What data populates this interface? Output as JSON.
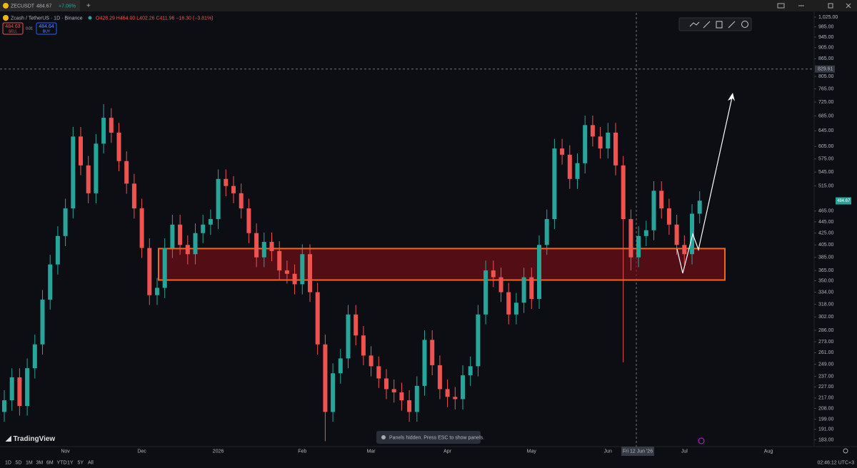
{
  "tab": {
    "symbol": "ZECUSDT",
    "price": "484.67",
    "change": "+7.06%"
  },
  "header": {
    "title": "Zcash / TetherUS · 1D · Binance",
    "ohlc": "O428.29 H464.00 L402.26 C411.96 −16.30 (−3.81%)",
    "sell_price": "484.63",
    "sell": "SELL",
    "spread": "0.01",
    "buy_price": "484.64",
    "buy": "BUY"
  },
  "chart_data": {
    "type": "candlestick",
    "log_scale": true,
    "up_color": "#26a69a",
    "down_color": "#ef5350",
    "categories": [
      null,
      null,
      null,
      null,
      null,
      null,
      null,
      null,
      "Nov",
      null,
      null,
      null,
      null,
      null,
      null,
      null,
      null,
      null,
      "Dec",
      null,
      null,
      null,
      null,
      null,
      null,
      null,
      null,
      null,
      "2026",
      null,
      null,
      null,
      null,
      null,
      null,
      null,
      null,
      null,
      null,
      "Feb",
      null,
      null,
      null,
      null,
      null,
      null,
      null,
      null,
      "Mar",
      null,
      null,
      null,
      null,
      null,
      null,
      null,
      null,
      null,
      "Apr",
      null,
      null,
      null,
      null,
      null,
      null,
      null,
      null,
      null,
      null,
      "May",
      null,
      null,
      null,
      null,
      null,
      null,
      null,
      null,
      null,
      "Jun",
      null,
      null,
      null,
      null,
      null,
      null,
      null,
      null,
      null,
      "Jul",
      null,
      null,
      null,
      null,
      null,
      null,
      null,
      null,
      null,
      null,
      "Aug"
    ],
    "open": [
      205,
      215,
      236,
      210,
      245,
      270,
      324,
      374,
      420,
      470,
      630,
      560,
      500,
      612,
      680,
      640,
      570,
      520,
      470,
      400,
      330,
      340,
      400,
      440,
      405,
      390,
      425,
      440,
      450,
      530,
      515,
      500,
      470,
      425,
      385,
      410,
      395,
      365,
      360,
      345,
      390,
      334,
      270,
      205,
      240,
      255,
      305,
      280,
      258,
      247,
      235,
      225,
      222,
      215,
      205,
      228,
      275,
      248,
      225,
      218,
      216,
      238,
      247,
      305,
      365,
      355,
      334,
      305,
      320,
      355,
      325,
      405,
      450,
      600,
      585,
      530,
      565,
      660,
      630,
      600,
      640,
      560,
      450,
      385,
      420,
      430,
      505,
      470,
      440,
      405,
      390,
      460,
      null,
      null,
      null,
      null,
      null,
      null,
      null,
      null,
      null
    ],
    "high": [
      224,
      245,
      245,
      255,
      281,
      337,
      389,
      437,
      489,
      655,
      655,
      582,
      636,
      719,
      707,
      666,
      593,
      541,
      489,
      416,
      354,
      416,
      458,
      458,
      421,
      442,
      458,
      468,
      551,
      551,
      536,
      520,
      489,
      442,
      426,
      426,
      411,
      380,
      374,
      406,
      406,
      347,
      281,
      250,
      265,
      317,
      317,
      291,
      268,
      257,
      244,
      234,
      231,
      224,
      237,
      286,
      286,
      258,
      234,
      227,
      248,
      257,
      317,
      380,
      380,
      369,
      347,
      333,
      369,
      369,
      421,
      468,
      624,
      624,
      608,
      588,
      686,
      686,
      655,
      666,
      666,
      582,
      468,
      437,
      447,
      525,
      525,
      489,
      458,
      421,
      478,
      504,
      null,
      null,
      null,
      null,
      null,
      null,
      null,
      null,
      null
    ],
    "low": [
      197,
      206,
      202,
      202,
      235,
      259,
      311,
      359,
      403,
      451,
      538,
      480,
      480,
      588,
      614,
      547,
      499,
      451,
      384,
      317,
      317,
      326,
      384,
      389,
      374,
      374,
      408,
      422,
      432,
      494,
      480,
      451,
      408,
      370,
      370,
      379,
      350,
      346,
      331,
      331,
      321,
      259,
      182,
      197,
      230,
      245,
      269,
      248,
      237,
      226,
      216,
      213,
      206,
      197,
      197,
      219,
      238,
      216,
      209,
      207,
      207,
      228,
      237,
      293,
      341,
      321,
      293,
      293,
      307,
      312,
      312,
      389,
      432,
      562,
      509,
      509,
      542,
      605,
      576,
      576,
      538,
      251,
      365,
      370,
      403,
      413,
      451,
      422,
      389,
      374,
      374,
      442,
      null,
      null,
      null,
      null,
      null,
      null,
      null,
      null,
      null
    ],
    "close": [
      215,
      236,
      210,
      245,
      270,
      324,
      374,
      420,
      470,
      630,
      560,
      500,
      612,
      680,
      640,
      570,
      520,
      470,
      400,
      330,
      340,
      400,
      440,
      405,
      390,
      425,
      440,
      450,
      530,
      515,
      500,
      470,
      425,
      385,
      410,
      395,
      365,
      360,
      345,
      390,
      334,
      270,
      205,
      240,
      255,
      305,
      280,
      258,
      247,
      235,
      225,
      222,
      215,
      205,
      228,
      275,
      248,
      225,
      218,
      216,
      238,
      247,
      305,
      365,
      355,
      334,
      305,
      320,
      355,
      325,
      405,
      450,
      600,
      585,
      530,
      565,
      660,
      630,
      600,
      640,
      560,
      450,
      385,
      420,
      430,
      505,
      470,
      440,
      405,
      390,
      460,
      485,
      null,
      null,
      null,
      null,
      null,
      null,
      null,
      null,
      null
    ],
    "ylim": [
      178,
      1043
    ],
    "yticks": [
      {
        "value": 1025,
        "label": "1,025.00"
      },
      {
        "value": 985,
        "label": "985.00"
      },
      {
        "value": 945,
        "label": "945.00"
      },
      {
        "value": 905,
        "label": "905.00"
      },
      {
        "value": 865,
        "label": "865.00"
      },
      {
        "value": 805,
        "label": "805.00"
      },
      {
        "value": 765,
        "label": "765.00"
      },
      {
        "value": 725,
        "label": "725.00"
      },
      {
        "value": 685,
        "label": "685.00"
      },
      {
        "value": 645,
        "label": "645.00"
      },
      {
        "value": 605,
        "label": "605.00"
      },
      {
        "value": 575,
        "label": "575.00"
      },
      {
        "value": 545,
        "label": "545.00"
      },
      {
        "value": 515,
        "label": "515.00"
      },
      {
        "value": 465,
        "label": "465.00"
      },
      {
        "value": 445,
        "label": "445.00"
      },
      {
        "value": 425,
        "label": "425.00"
      },
      {
        "value": 405,
        "label": "405.00"
      },
      {
        "value": 385,
        "label": "385.00"
      },
      {
        "value": 365,
        "label": "365.00"
      },
      {
        "value": 350,
        "label": "350.00"
      },
      {
        "value": 334,
        "label": "334.00"
      },
      {
        "value": 318,
        "label": "318.00"
      },
      {
        "value": 302,
        "label": "302.00"
      },
      {
        "value": 286,
        "label": "286.00"
      },
      {
        "value": 273,
        "label": "273.00"
      },
      {
        "value": 261,
        "label": "261.00"
      },
      {
        "value": 249,
        "label": "249.00"
      },
      {
        "value": 237,
        "label": "237.00"
      },
      {
        "value": 227,
        "label": "227.00"
      },
      {
        "value": 217,
        "label": "217.00"
      },
      {
        "value": 208,
        "label": "208.00"
      },
      {
        "value": 199,
        "label": "199.00"
      },
      {
        "value": 191,
        "label": "191.00"
      },
      {
        "value": 183,
        "label": "183.00"
      }
    ],
    "current_price": 484.67,
    "crosshair": {
      "price": 829.61,
      "x_label": "Fri 12 Jun '26"
    },
    "zone": {
      "low": 351,
      "high": 399
    }
  },
  "toast": "Panels hidden. Press ESC to show panels.",
  "watermark": "TradingView",
  "toolbar": {
    "ranges": [
      "1D",
      "5D",
      "1M",
      "3M",
      "6M",
      "YTD",
      "1Y",
      "5Y",
      "All"
    ],
    "clock": "02:46:12 UTC+3"
  }
}
